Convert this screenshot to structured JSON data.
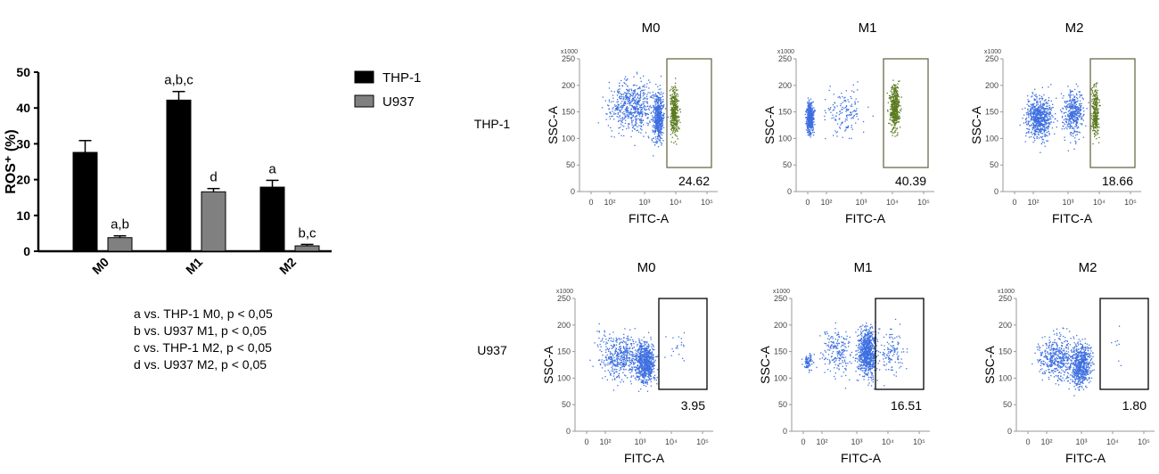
{
  "chart_data": [
    {
      "type": "bar",
      "ylabel": "ROS⁺ (%)",
      "ylim": [
        0,
        50
      ],
      "yticks": [
        0,
        10,
        20,
        30,
        40,
        50
      ],
      "categories": [
        "M0",
        "M1",
        "M2"
      ],
      "legend_position": "right",
      "series": [
        {
          "name": "THP-1",
          "color": "#000000",
          "values": [
            27.6,
            42.2,
            17.9
          ],
          "errors": [
            3.3,
            2.4,
            1.9
          ],
          "annotations": [
            "",
            "a,b,c",
            "a"
          ]
        },
        {
          "name": "U937",
          "color": "#808080",
          "values": [
            3.8,
            16.6,
            1.5
          ],
          "errors": [
            0.5,
            0.9,
            0.4
          ],
          "annotations": [
            "a,b",
            "d",
            "b,c"
          ]
        }
      ],
      "footnotes": [
        "a vs. THP-1 M0, p < 0,05",
        "b vs. U937 M1, p < 0,05",
        "c vs. THP-1 M2, p < 0,05",
        "d vs. U937 M2, p < 0,05"
      ]
    },
    {
      "type": "scatter",
      "xlabel": "FITC-A",
      "ylabel": "SSC-A",
      "y_multiplier": "x1000",
      "yticks": [
        "0",
        "50",
        "100",
        "150",
        "200",
        "250"
      ],
      "xticks": [
        "0",
        "10²",
        "10³",
        "10⁴",
        "10⁵"
      ],
      "colors": {
        "negative": "#3d6fe0",
        "positive": "#5a7a1e"
      },
      "rows": [
        {
          "label": "THP-1",
          "panels": [
            {
              "title": "M0",
              "gate_percent": "24.62"
            },
            {
              "title": "M1",
              "gate_percent": "40.39"
            },
            {
              "title": "M2",
              "gate_percent": "18.66"
            }
          ]
        },
        {
          "label": "U937",
          "panels": [
            {
              "title": "M0",
              "gate_percent": "3.95"
            },
            {
              "title": "M1",
              "gate_percent": "16.51"
            },
            {
              "title": "M2",
              "gate_percent": "1.80"
            }
          ]
        }
      ]
    }
  ]
}
